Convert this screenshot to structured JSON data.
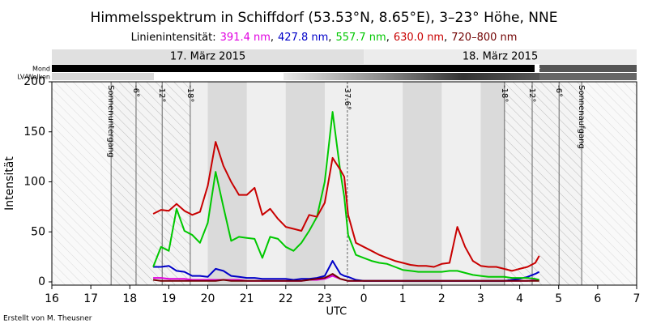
{
  "chart_data": {
    "type": "line",
    "title": "Himmelsspektrum in Schiffdorf (53.53°N, 8.65°E), 3–23° Höhe, NNE",
    "subtitle": "Linienintensität:",
    "legend_separator": ",",
    "date_labels": [
      "17. März 2015",
      "18. März 2015"
    ],
    "bar_labels": [
      "Mond",
      "LV/Wolken"
    ],
    "xlabel": "UTC",
    "ylabel": "Intensität",
    "credit": "Erstellt von M. Theusner",
    "annotations": [
      {
        "x": 17.52,
        "label": "Sonnenuntergang"
      },
      {
        "x": 18.16,
        "label": "-6°"
      },
      {
        "x": 18.83,
        "label": "-12°"
      },
      {
        "x": 19.55,
        "label": "-18°"
      },
      {
        "x": 23.58,
        "label": "-37.6°"
      },
      {
        "x": 27.61,
        "label": "-18°"
      },
      {
        "x": 28.32,
        "label": "-12°"
      },
      {
        "x": 29.01,
        "label": "-6°"
      },
      {
        "x": 29.59,
        "label": "Sonnenaufgang"
      }
    ],
    "xlim": [
      16,
      31
    ],
    "xticks": [
      16,
      17,
      18,
      19,
      20,
      21,
      22,
      23,
      {
        "value": 24,
        "label": "0"
      },
      {
        "value": 25,
        "label": "1"
      },
      {
        "value": 26,
        "label": "2"
      },
      {
        "value": 27,
        "label": "3"
      },
      {
        "value": 28,
        "label": "4"
      },
      {
        "value": 29,
        "label": "5"
      },
      {
        "value": 30,
        "label": "6"
      },
      {
        "value": 31,
        "label": "7"
      }
    ],
    "ylim": [
      0,
      200
    ],
    "yticks": [
      0,
      50,
      100,
      150,
      200
    ],
    "x": [
      18.6,
      18.8,
      19.0,
      19.2,
      19.4,
      19.6,
      19.8,
      20.0,
      20.2,
      20.4,
      20.6,
      20.8,
      21.0,
      21.2,
      21.4,
      21.6,
      21.8,
      22.0,
      22.2,
      22.4,
      22.6,
      22.8,
      23.0,
      23.2,
      23.4,
      23.5,
      23.6,
      23.8,
      24.0,
      24.2,
      24.4,
      24.6,
      24.8,
      25.0,
      25.2,
      25.4,
      25.6,
      25.8,
      26.0,
      26.2,
      26.4,
      26.6,
      26.8,
      27.0,
      27.2,
      27.4,
      27.6,
      27.8,
      28.0,
      28.2,
      28.4,
      28.5
    ],
    "series": [
      {
        "name": "391.4 nm",
        "color": "#e000e0",
        "values": [
          4,
          4,
          3,
          3,
          3,
          2,
          2,
          2,
          2,
          2,
          2,
          2,
          1,
          1,
          1,
          1,
          1,
          1,
          1,
          1,
          2,
          2,
          3,
          6,
          3,
          2,
          1,
          1,
          1,
          1,
          1,
          1,
          1,
          1,
          1,
          1,
          1,
          1,
          1,
          1,
          1,
          1,
          1,
          1,
          1,
          1,
          1,
          1,
          1,
          1,
          2,
          2
        ]
      },
      {
        "name": "427.8 nm",
        "color": "#0000c8",
        "values": [
          15,
          15,
          16,
          11,
          10,
          6,
          6,
          5,
          13,
          11,
          6,
          5,
          4,
          4,
          3,
          3,
          3,
          3,
          2,
          3,
          3,
          4,
          6,
          21,
          8,
          6,
          5,
          2,
          1,
          1,
          1,
          1,
          1,
          1,
          1,
          1,
          1,
          1,
          1,
          1,
          1,
          1,
          1,
          1,
          1,
          1,
          1,
          2,
          3,
          5,
          8,
          10
        ]
      },
      {
        "name": "557.7 nm",
        "color": "#00c800",
        "values": [
          15,
          35,
          31,
          73,
          51,
          47,
          39,
          59,
          110,
          75,
          41,
          45,
          44,
          43,
          24,
          45,
          43,
          35,
          31,
          39,
          51,
          65,
          100,
          170,
          110,
          85,
          47,
          27,
          24,
          21,
          19,
          18,
          15,
          12,
          11,
          10,
          10,
          10,
          10,
          11,
          11,
          9,
          7,
          6,
          5,
          5,
          5,
          4,
          4,
          4,
          3,
          2
        ]
      },
      {
        "name": "630.0 nm",
        "color": "#c80000",
        "values": [
          68,
          72,
          71,
          78,
          71,
          67,
          70,
          96,
          140,
          116,
          100,
          87,
          87,
          94,
          67,
          73,
          63,
          55,
          53,
          51,
          67,
          65,
          79,
          124,
          112,
          105,
          67,
          39,
          35,
          31,
          27,
          24,
          21,
          19,
          17,
          16,
          16,
          15,
          18,
          19,
          55,
          35,
          21,
          16,
          15,
          15,
          13,
          11,
          13,
          15,
          19,
          26
        ]
      },
      {
        "name": "720–800 nm",
        "color": "#700000",
        "values": [
          2,
          1,
          1,
          1,
          1,
          1,
          1,
          1,
          1,
          2,
          1,
          1,
          1,
          1,
          1,
          1,
          1,
          1,
          1,
          1,
          2,
          3,
          4,
          8,
          3,
          2,
          1,
          1,
          1,
          1,
          1,
          1,
          1,
          1,
          1,
          1,
          1,
          1,
          1,
          1,
          1,
          1,
          1,
          1,
          1,
          1,
          1,
          1,
          1,
          1,
          1,
          1
        ]
      }
    ]
  }
}
